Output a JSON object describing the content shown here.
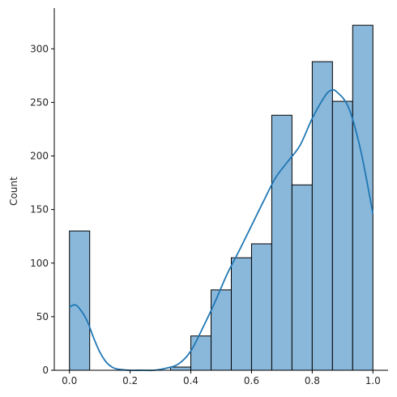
{
  "chart_data": {
    "type": "bar",
    "subtype": "histogram",
    "bin_edges": [
      0.0,
      0.0667,
      0.1333,
      0.2,
      0.2667,
      0.3333,
      0.4,
      0.4667,
      0.5333,
      0.6,
      0.6667,
      0.7333,
      0.8,
      0.8667,
      0.9333,
      1.0
    ],
    "values": [
      130,
      0,
      0,
      0,
      0,
      3,
      32,
      75,
      105,
      118,
      238,
      173,
      288,
      251,
      322
    ],
    "kde": {
      "x": [
        0.0,
        0.02,
        0.04,
        0.06,
        0.08,
        0.1,
        0.12,
        0.14,
        0.16,
        0.2,
        0.24,
        0.28,
        0.32,
        0.36,
        0.4,
        0.44,
        0.48,
        0.52,
        0.56,
        0.6,
        0.64,
        0.68,
        0.72,
        0.76,
        0.8,
        0.84,
        0.86,
        0.88,
        0.92,
        0.96,
        1.0
      ],
      "y": [
        59,
        61,
        55,
        45,
        30,
        17,
        8,
        3,
        1,
        0,
        0,
        0,
        2,
        6,
        18,
        40,
        64,
        90,
        112,
        135,
        158,
        180,
        195,
        210,
        235,
        255,
        261,
        260,
        245,
        205,
        146
      ]
    },
    "title": "",
    "xlabel": "",
    "ylabel": "Count",
    "xlim": [
      -0.05,
      1.05
    ],
    "ylim": [
      0,
      338
    ],
    "xticks": [
      "0.0",
      "0.2",
      "0.4",
      "0.6",
      "0.8",
      "1.0"
    ],
    "xtick_values": [
      0.0,
      0.2,
      0.4,
      0.6,
      0.8,
      1.0
    ],
    "yticks": [
      "0",
      "50",
      "100",
      "150",
      "200",
      "250",
      "300"
    ],
    "ytick_values": [
      0,
      50,
      100,
      150,
      200,
      250,
      300
    ],
    "grid": false,
    "colors": {
      "bar_fill": "#8ab8db",
      "bar_edge": "#000000",
      "kde_line": "#1f77b4",
      "axis": "#000000",
      "text": "#262626"
    }
  }
}
